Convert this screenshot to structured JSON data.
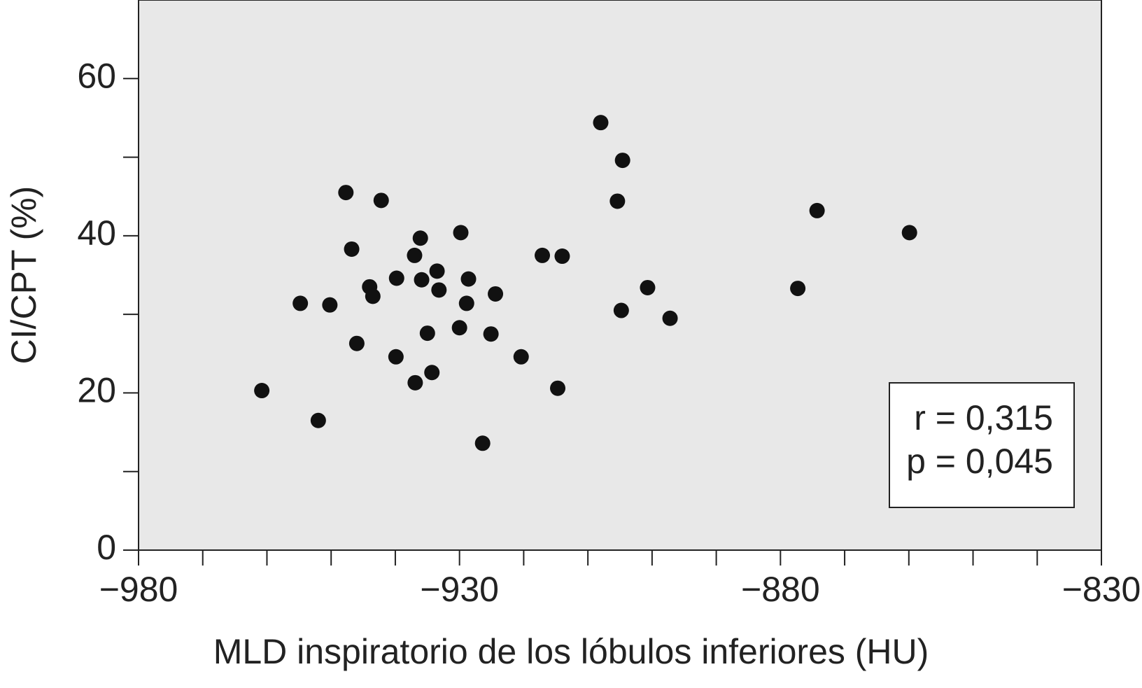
{
  "chart_data": {
    "type": "scatter",
    "x_label": "MLD inspiratorio de los lóbulos inferiores (HU)",
    "y_label": "CI/CPT (%)",
    "x": [
      -960.8,
      -954.8,
      -952.0,
      -950.2,
      -947.7,
      -946.8,
      -946.0,
      -944.0,
      -943.5,
      -942.2,
      -939.9,
      -939.8,
      -937.0,
      -936.9,
      -936.1,
      -935.9,
      -935.0,
      -934.3,
      -933.5,
      -933.2,
      -930.0,
      -929.8,
      -928.6,
      -928.9,
      -926.4,
      -925.1,
      -924.4,
      -920.4,
      -917.1,
      -914.7,
      -914.0,
      -908.0,
      -905.4,
      -904.6,
      -904.8,
      -900.7,
      -897.2,
      -877.3,
      -874.3,
      -859.9
    ],
    "values": [
      20.3,
      31.4,
      16.5,
      31.2,
      45.5,
      38.3,
      26.3,
      33.5,
      32.3,
      44.5,
      24.6,
      34.6,
      37.5,
      21.3,
      39.7,
      34.4,
      27.6,
      22.6,
      35.5,
      33.1,
      28.3,
      40.4,
      34.5,
      31.4,
      13.6,
      27.5,
      32.6,
      24.6,
      37.5,
      20.6,
      37.4,
      54.4,
      44.4,
      49.6,
      30.5,
      33.4,
      29.5,
      33.3,
      43.2,
      40.4
    ],
    "color": "#111111",
    "xlim": [
      -980,
      -830
    ],
    "xticks": [
      {
        "value": -980,
        "label": "−980"
      },
      {
        "value": -930,
        "label": "−930"
      },
      {
        "value": -880,
        "label": "−880"
      },
      {
        "value": -830,
        "label": "−830"
      }
    ],
    "xminorticks": [
      -970,
      -960,
      -950,
      -940,
      -920,
      -910,
      -900,
      -890,
      -870,
      -860,
      -850,
      -840
    ],
    "ylim": [
      0,
      70
    ],
    "yticks": [
      0,
      20,
      40,
      60
    ],
    "yminorticks": [
      10,
      30,
      50
    ],
    "annotations": [
      "r = 0,315",
      "p = 0,045"
    ]
  }
}
